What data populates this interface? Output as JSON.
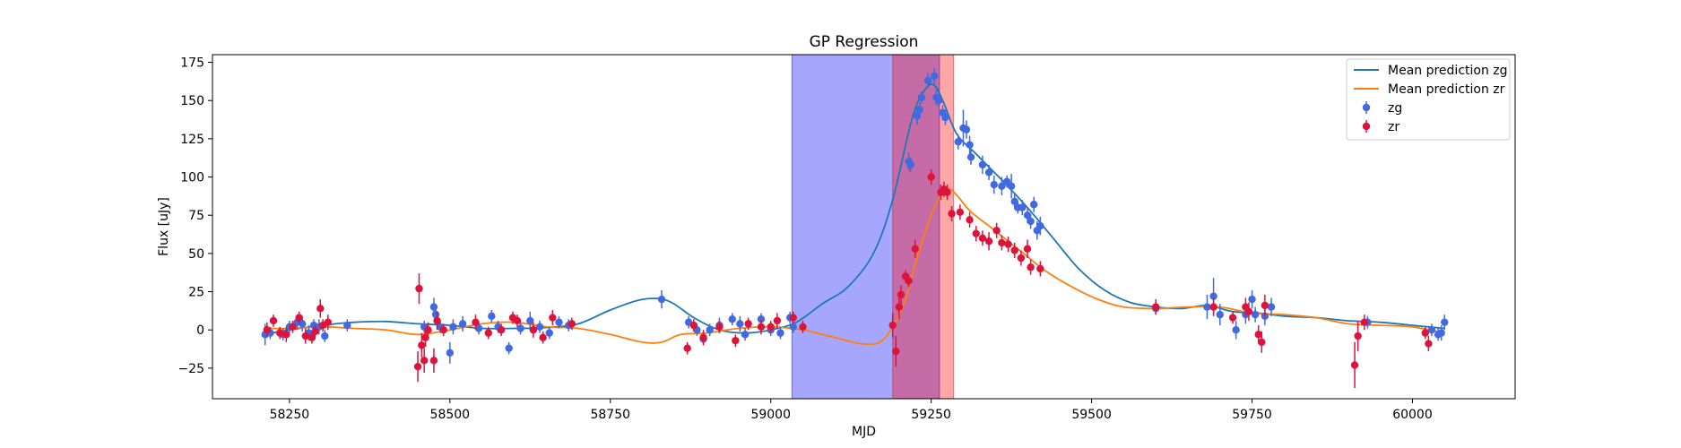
{
  "chart_data": {
    "type": "scatter",
    "title": "GP Regression",
    "xlabel": "MJD",
    "ylabel": "Flux [uJy]",
    "xlim": [
      58130,
      60160
    ],
    "ylim": [
      -45,
      180
    ],
    "x_ticks": [
      58250,
      58500,
      58750,
      59000,
      59250,
      59500,
      59750,
      60000
    ],
    "y_ticks": [
      -25,
      0,
      25,
      50,
      75,
      100,
      125,
      150,
      175
    ],
    "grid": false,
    "legend_position": "top-right",
    "spans": [
      {
        "x0": 59033,
        "x1": 59263,
        "color": "#0000ff",
        "opacity": 0.35
      },
      {
        "x0": 59190,
        "x1": 59285,
        "color": "#ff0000",
        "opacity": 0.35
      }
    ],
    "lines": [
      {
        "name": "Mean prediction zg",
        "color": "#1f77b4",
        "points": [
          [
            58210,
            -3
          ],
          [
            58250,
            0
          ],
          [
            58300,
            3
          ],
          [
            58350,
            5
          ],
          [
            58400,
            5.5
          ],
          [
            58450,
            4
          ],
          [
            58500,
            3
          ],
          [
            58550,
            1
          ],
          [
            58600,
            1
          ],
          [
            58650,
            1.5
          ],
          [
            58700,
            4
          ],
          [
            58750,
            13
          ],
          [
            58800,
            20
          ],
          [
            58840,
            19
          ],
          [
            58880,
            8
          ],
          [
            58920,
            0
          ],
          [
            58960,
            -2
          ],
          [
            59000,
            0
          ],
          [
            59040,
            5
          ],
          [
            59080,
            17
          ],
          [
            59120,
            28
          ],
          [
            59160,
            50
          ],
          [
            59190,
            85
          ],
          [
            59220,
            138
          ],
          [
            59240,
            157
          ],
          [
            59255,
            160
          ],
          [
            59270,
            148
          ],
          [
            59290,
            128
          ],
          [
            59320,
            115
          ],
          [
            59360,
            98
          ],
          [
            59400,
            80
          ],
          [
            59440,
            60
          ],
          [
            59480,
            40
          ],
          [
            59520,
            26
          ],
          [
            59560,
            18
          ],
          [
            59600,
            15
          ],
          [
            59640,
            14
          ],
          [
            59680,
            16
          ],
          [
            59720,
            12
          ],
          [
            59760,
            11
          ],
          [
            59800,
            9
          ],
          [
            59850,
            8
          ],
          [
            59900,
            6
          ],
          [
            59950,
            5
          ],
          [
            60000,
            3
          ],
          [
            60050,
            1
          ]
        ]
      },
      {
        "name": "Mean prediction zr",
        "color": "#ff7f0e",
        "points": [
          [
            58210,
            1
          ],
          [
            58250,
            1
          ],
          [
            58300,
            2
          ],
          [
            58350,
            1
          ],
          [
            58400,
            0
          ],
          [
            58450,
            -3
          ],
          [
            58500,
            0
          ],
          [
            58550,
            4
          ],
          [
            58600,
            5
          ],
          [
            58650,
            2
          ],
          [
            58700,
            1
          ],
          [
            58750,
            -3
          ],
          [
            58800,
            -8
          ],
          [
            58830,
            -8
          ],
          [
            58860,
            -3
          ],
          [
            58900,
            -2
          ],
          [
            58950,
            1
          ],
          [
            59000,
            2
          ],
          [
            59050,
            0
          ],
          [
            59100,
            -5
          ],
          [
            59140,
            -9
          ],
          [
            59170,
            -8
          ],
          [
            59190,
            2
          ],
          [
            59210,
            20
          ],
          [
            59230,
            50
          ],
          [
            59255,
            80
          ],
          [
            59275,
            92
          ],
          [
            59290,
            88
          ],
          [
            59310,
            78
          ],
          [
            59340,
            68
          ],
          [
            59370,
            58
          ],
          [
            59400,
            48
          ],
          [
            59430,
            38
          ],
          [
            59470,
            28
          ],
          [
            59510,
            20
          ],
          [
            59550,
            15
          ],
          [
            59600,
            14
          ],
          [
            59650,
            15
          ],
          [
            59700,
            15
          ],
          [
            59750,
            11
          ],
          [
            59800,
            10
          ],
          [
            59850,
            8
          ],
          [
            59900,
            4
          ],
          [
            59950,
            3
          ],
          [
            60000,
            2
          ],
          [
            60050,
            -2
          ]
        ]
      }
    ],
    "series": [
      {
        "name": "zg",
        "color": "#4169e1",
        "points": [
          [
            58212,
            -3,
            7
          ],
          [
            58220,
            -2,
            4
          ],
          [
            58240,
            -3,
            4
          ],
          [
            58250,
            2,
            4
          ],
          [
            58262,
            5,
            5
          ],
          [
            58270,
            4,
            5
          ],
          [
            58280,
            -2,
            5
          ],
          [
            58288,
            3,
            4
          ],
          [
            58296,
            2,
            5
          ],
          [
            58305,
            -4,
            4
          ],
          [
            58340,
            3,
            4
          ],
          [
            58460,
            2,
            4
          ],
          [
            58475,
            15,
            6
          ],
          [
            58478,
            10,
            6
          ],
          [
            58485,
            2,
            4
          ],
          [
            58500,
            -15,
            7
          ],
          [
            58505,
            2,
            5
          ],
          [
            58520,
            4,
            5
          ],
          [
            58545,
            1,
            4
          ],
          [
            58565,
            9,
            4
          ],
          [
            58575,
            2,
            4
          ],
          [
            58592,
            -12,
            4
          ],
          [
            58610,
            1,
            4
          ],
          [
            58625,
            6,
            6
          ],
          [
            58640,
            2,
            4
          ],
          [
            58655,
            -2,
            4
          ],
          [
            58670,
            5,
            4
          ],
          [
            58685,
            3,
            4
          ],
          [
            58830,
            20,
            6
          ],
          [
            58872,
            5,
            4
          ],
          [
            58885,
            0,
            4
          ],
          [
            58895,
            -6,
            4
          ],
          [
            58905,
            0,
            4
          ],
          [
            58920,
            3,
            5
          ],
          [
            58940,
            7,
            4
          ],
          [
            58952,
            4,
            5
          ],
          [
            58960,
            -3,
            4
          ],
          [
            58985,
            7,
            4
          ],
          [
            59000,
            0,
            4
          ],
          [
            59015,
            -2,
            4
          ],
          [
            59030,
            8,
            4
          ],
          [
            59035,
            2,
            4
          ],
          [
            59215,
            110,
            6
          ],
          [
            59218,
            108,
            5
          ],
          [
            59228,
            140,
            6
          ],
          [
            59232,
            144,
            5
          ],
          [
            59235,
            152,
            4
          ],
          [
            59245,
            163,
            5
          ],
          [
            59255,
            166,
            5
          ],
          [
            59258,
            152,
            5
          ],
          [
            59262,
            150,
            5
          ],
          [
            59268,
            142,
            5
          ],
          [
            59272,
            139,
            5
          ],
          [
            59292,
            123,
            5
          ],
          [
            59300,
            132,
            12
          ],
          [
            59305,
            131,
            6
          ],
          [
            59310,
            121,
            6
          ],
          [
            59312,
            113,
            5
          ],
          [
            59330,
            108,
            6
          ],
          [
            59340,
            103,
            5
          ],
          [
            59348,
            95,
            6
          ],
          [
            59360,
            94,
            6
          ],
          [
            59368,
            97,
            4
          ],
          [
            59375,
            94,
            8
          ],
          [
            59380,
            84,
            5
          ],
          [
            59385,
            80,
            4
          ],
          [
            59392,
            80,
            5
          ],
          [
            59400,
            75,
            5
          ],
          [
            59405,
            71,
            5
          ],
          [
            59410,
            82,
            5
          ],
          [
            59415,
            65,
            6
          ],
          [
            59420,
            68,
            6
          ],
          [
            59600,
            14,
            4
          ],
          [
            59680,
            15,
            8
          ],
          [
            59690,
            22,
            12
          ],
          [
            59700,
            10,
            7
          ],
          [
            59725,
            0,
            6
          ],
          [
            59740,
            10,
            6
          ],
          [
            59750,
            20,
            6
          ],
          [
            59755,
            10,
            5
          ],
          [
            59770,
            9,
            6
          ],
          [
            59780,
            15,
            6
          ],
          [
            59930,
            5,
            4
          ],
          [
            60030,
            0,
            4
          ],
          [
            60040,
            -3,
            4
          ],
          [
            60045,
            -2,
            5
          ],
          [
            60050,
            5,
            5
          ]
        ]
      },
      {
        "name": "zr",
        "color": "#dc143c",
        "points": [
          [
            58215,
            0,
            5
          ],
          [
            58225,
            6,
            4
          ],
          [
            58235,
            -2,
            4
          ],
          [
            58245,
            -3,
            5
          ],
          [
            58255,
            2,
            4
          ],
          [
            58265,
            8,
            4
          ],
          [
            58275,
            -4,
            5
          ],
          [
            58285,
            -5,
            4
          ],
          [
            58290,
            -1,
            4
          ],
          [
            58298,
            14,
            6
          ],
          [
            58302,
            3,
            4
          ],
          [
            58310,
            5,
            5
          ],
          [
            58450,
            -24,
            10
          ],
          [
            58452,
            27,
            10
          ],
          [
            58456,
            -10,
            8
          ],
          [
            58460,
            -20,
            8
          ],
          [
            58462,
            -5,
            6
          ],
          [
            58466,
            0,
            5
          ],
          [
            58475,
            -20,
            8
          ],
          [
            58480,
            6,
            6
          ],
          [
            58490,
            0,
            4
          ],
          [
            58540,
            5,
            5
          ],
          [
            58560,
            -2,
            4
          ],
          [
            58580,
            0,
            4
          ],
          [
            58598,
            8,
            4
          ],
          [
            58605,
            6,
            4
          ],
          [
            58630,
            0,
            5
          ],
          [
            58645,
            -5,
            4
          ],
          [
            58660,
            8,
            5
          ],
          [
            58690,
            4,
            4
          ],
          [
            58870,
            -12,
            4
          ],
          [
            58880,
            3,
            4
          ],
          [
            58895,
            -5,
            5
          ],
          [
            58920,
            2,
            4
          ],
          [
            58945,
            -7,
            4
          ],
          [
            58965,
            4,
            4
          ],
          [
            58985,
            2,
            5
          ],
          [
            59000,
            2,
            4
          ],
          [
            59010,
            6,
            5
          ],
          [
            59035,
            8,
            4
          ],
          [
            59050,
            2,
            4
          ],
          [
            59190,
            3,
            8
          ],
          [
            59195,
            -14,
            10
          ],
          [
            59200,
            15,
            8
          ],
          [
            59203,
            23,
            6
          ],
          [
            59210,
            35,
            4
          ],
          [
            59215,
            32,
            4
          ],
          [
            59225,
            53,
            6
          ],
          [
            59250,
            100,
            5
          ],
          [
            59265,
            90,
            5
          ],
          [
            59270,
            92,
            5
          ],
          [
            59275,
            90,
            5
          ],
          [
            59282,
            76,
            5
          ],
          [
            59295,
            77,
            5
          ],
          [
            59310,
            72,
            5
          ],
          [
            59320,
            63,
            5
          ],
          [
            59330,
            60,
            5
          ],
          [
            59340,
            58,
            6
          ],
          [
            59352,
            65,
            5
          ],
          [
            59360,
            57,
            5
          ],
          [
            59370,
            56,
            5
          ],
          [
            59380,
            52,
            5
          ],
          [
            59390,
            47,
            5
          ],
          [
            59400,
            53,
            6
          ],
          [
            59405,
            41,
            5
          ],
          [
            59420,
            40,
            5
          ],
          [
            59600,
            15,
            5
          ],
          [
            59690,
            15,
            6
          ],
          [
            59720,
            8,
            4
          ],
          [
            59740,
            15,
            6
          ],
          [
            59745,
            12,
            6
          ],
          [
            59760,
            -3,
            6
          ],
          [
            59765,
            -8,
            7
          ],
          [
            59770,
            16,
            7
          ],
          [
            59910,
            -23,
            15
          ],
          [
            59915,
            -4,
            10
          ],
          [
            59925,
            5,
            5
          ],
          [
            60020,
            -2,
            4
          ],
          [
            60025,
            -9,
            5
          ]
        ]
      }
    ]
  }
}
